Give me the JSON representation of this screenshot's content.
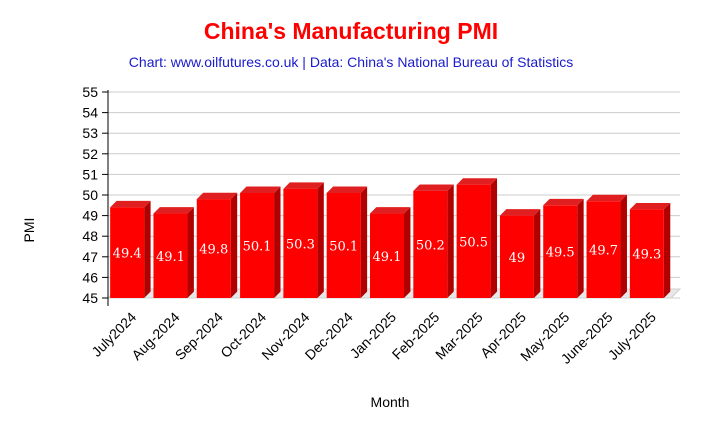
{
  "chart_data": {
    "type": "bar",
    "title": "China's Manufacturing PMI",
    "subtitle": "Chart: www.oilfutures.co.uk | Data: China's National Bureau of Statistics",
    "xlabel": "Month",
    "ylabel": "PMI",
    "ylim": [
      45,
      55
    ],
    "yticks": [
      45,
      46,
      47,
      48,
      49,
      50,
      51,
      52,
      53,
      54,
      55
    ],
    "categories": [
      "July2024",
      "Aug-2024",
      "Sep-2024",
      "Oct-2024",
      "Nov-2024",
      "Dec-2024",
      "Jan-2025",
      "Feb-2025",
      "Mar-2025",
      "Apr-2025",
      "May-2025",
      "June-2025",
      "July-2025"
    ],
    "values": [
      49.4,
      49.1,
      49.8,
      50.1,
      50.3,
      50.1,
      49.1,
      50.2,
      50.5,
      49,
      49.5,
      49.7,
      49.3
    ],
    "data_labels": [
      "49.4",
      "49.1",
      "49.8",
      "50.1",
      "50.3",
      "50.1",
      "49.1",
      "50.2",
      "50.5",
      "49",
      "49.5",
      "49.7",
      "49.3"
    ],
    "grid": true,
    "style": "3d",
    "colors": {
      "bar_front": "#ff0000",
      "bar_side": "#b00000",
      "bar_top": "#e02020",
      "title": "#ff0000",
      "subtitle": "#1a1acc"
    }
  }
}
